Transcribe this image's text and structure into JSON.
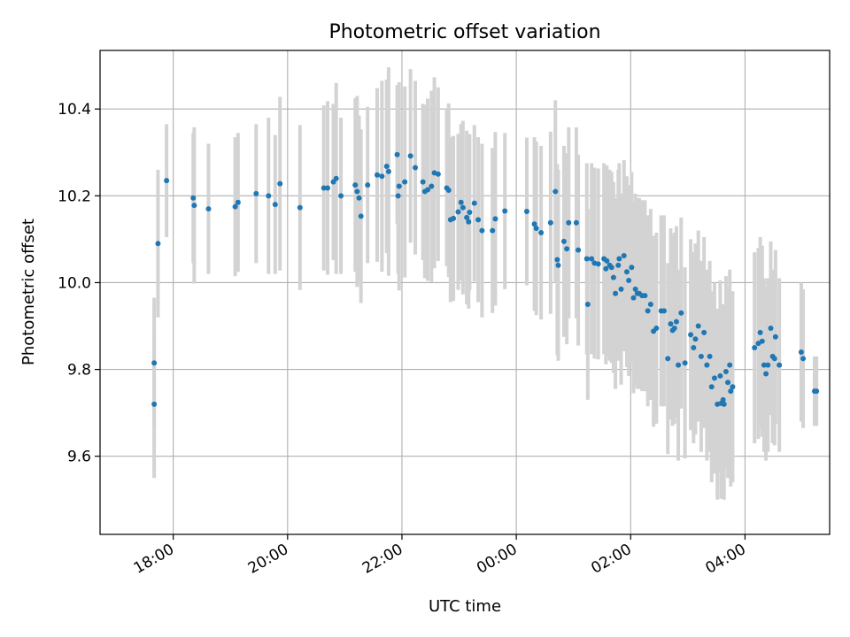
{
  "chart_data": {
    "type": "scatter",
    "title": "Photometric offset variation",
    "xlabel": "UTC time",
    "ylabel": "Photometric offset",
    "x_axis_kind": "time",
    "xlim_hours": [
      16.72,
      29.48
    ],
    "ylim": [
      9.42,
      10.535
    ],
    "x_ticks": [
      {
        "hour": 18,
        "label": "18:00"
      },
      {
        "hour": 20,
        "label": "20:00"
      },
      {
        "hour": 22,
        "label": "22:00"
      },
      {
        "hour": 24,
        "label": "00:00"
      },
      {
        "hour": 26,
        "label": "02:00"
      },
      {
        "hour": 28,
        "label": "04:00"
      }
    ],
    "y_ticks": [
      {
        "value": 9.6,
        "label": "9.6"
      },
      {
        "value": 9.8,
        "label": "9.8"
      },
      {
        "value": 10.0,
        "label": "10.0"
      },
      {
        "value": 10.2,
        "label": "10.2"
      },
      {
        "value": 10.4,
        "label": "10.4"
      }
    ],
    "grid": true,
    "colors": {
      "marker": "#1f77b4",
      "errorbar": "#d3d3d3",
      "grid": "#b0b0b0"
    },
    "series": [
      {
        "x": [
          "17:40",
          "17:40",
          "17:44",
          "17:53",
          "18:21",
          "18:22",
          "18:37",
          "19:05",
          "19:08",
          "19:27",
          "19:40",
          "19:47",
          "19:52",
          "20:13",
          "20:38",
          "20:42",
          "20:48",
          "20:51",
          "20:56",
          "21:11",
          "21:13",
          "21:15",
          "21:17",
          "21:24",
          "21:34",
          "21:39",
          "21:44",
          "21:46",
          "21:55",
          "21:56",
          "21:57",
          "22:03",
          "22:09",
          "22:14",
          "22:22",
          "22:24",
          "22:27",
          "22:31",
          "22:34",
          "22:38",
          "22:47",
          "22:49",
          "22:51",
          "22:54",
          "22:59",
          "23:02",
          "23:04",
          "23:08",
          "23:10",
          "23:11",
          "23:16",
          "23:20",
          "23:24",
          "23:35",
          "23:38",
          "23:48",
          "24:11",
          "24:19",
          "24:21",
          "24:26",
          "24:36",
          "24:41",
          "24:43",
          "24:44",
          "24:50",
          "24:53",
          "24:55",
          "25:03",
          "25:05",
          "25:14",
          "25:15",
          "25:19",
          "25:22",
          "25:26",
          "25:32",
          "25:34",
          "25:35",
          "25:38",
          "25:40",
          "25:42",
          "25:44",
          "25:47",
          "25:48",
          "25:50",
          "25:53",
          "25:56",
          "25:58",
          "26:01",
          "26:03",
          "26:05",
          "26:07",
          "26:09",
          "26:12",
          "26:15",
          "26:18",
          "26:21",
          "26:24",
          "26:27",
          "26:32",
          "26:35",
          "26:39",
          "26:42",
          "26:44",
          "26:46",
          "26:48",
          "26:50",
          "26:53",
          "26:57",
          "27:03",
          "27:06",
          "27:08",
          "27:11",
          "27:14",
          "27:17",
          "27:20",
          "27:23",
          "27:25",
          "27:28",
          "27:31",
          "27:34",
          "27:35",
          "27:37",
          "27:38",
          "27:40",
          "27:42",
          "27:44",
          "27:45",
          "27:47",
          "28:10",
          "28:14",
          "28:16",
          "28:18",
          "28:20",
          "28:22",
          "28:24",
          "28:27",
          "28:29",
          "28:31",
          "28:32",
          "28:36",
          "28:59",
          "29:01",
          "29:13",
          "29:15"
        ],
        "y": [
          9.72,
          9.815,
          10.09,
          10.235,
          10.195,
          10.178,
          10.17,
          10.175,
          10.185,
          10.205,
          10.2,
          10.18,
          10.228,
          10.173,
          10.218,
          10.218,
          10.232,
          10.24,
          10.2,
          10.225,
          10.21,
          10.195,
          10.153,
          10.225,
          10.248,
          10.245,
          10.268,
          10.256,
          10.295,
          10.2,
          10.222,
          10.232,
          10.292,
          10.265,
          10.232,
          10.21,
          10.214,
          10.222,
          10.253,
          10.25,
          10.218,
          10.213,
          10.145,
          10.148,
          10.163,
          10.185,
          10.173,
          10.15,
          10.14,
          10.162,
          10.183,
          10.145,
          10.12,
          10.12,
          10.147,
          10.165,
          10.164,
          10.135,
          10.125,
          10.115,
          10.138,
          10.21,
          10.053,
          10.04,
          10.095,
          10.078,
          10.138,
          10.138,
          10.075,
          10.055,
          9.95,
          10.055,
          10.045,
          10.043,
          10.055,
          10.032,
          10.05,
          10.04,
          10.035,
          10.012,
          9.975,
          10.04,
          10.055,
          9.985,
          10.062,
          10.025,
          10.005,
          10.035,
          9.965,
          9.985,
          9.975,
          9.975,
          9.97,
          9.97,
          9.935,
          9.95,
          9.888,
          9.895,
          9.935,
          9.935,
          9.825,
          9.905,
          9.89,
          9.895,
          9.91,
          9.81,
          9.93,
          9.815,
          9.88,
          9.85,
          9.87,
          9.9,
          9.83,
          9.885,
          9.81,
          9.83,
          9.76,
          9.78,
          9.72,
          9.785,
          9.722,
          9.73,
          9.72,
          9.795,
          9.77,
          9.81,
          9.75,
          9.76,
          9.85,
          9.86,
          9.885,
          9.865,
          9.81,
          9.79,
          9.81,
          9.895,
          9.83,
          9.825,
          9.875,
          9.81,
          9.84,
          9.825,
          9.75,
          9.75
        ],
        "y_err": [
          0.17,
          0.15,
          0.17,
          0.13,
          0.15,
          0.18,
          0.15,
          0.16,
          0.16,
          0.16,
          0.18,
          0.16,
          0.2,
          0.19,
          0.19,
          0.2,
          0.18,
          0.22,
          0.18,
          0.2,
          0.22,
          0.19,
          0.2,
          0.18,
          0.2,
          0.22,
          0.2,
          0.24,
          0.16,
          0.18,
          0.24,
          0.22,
          0.2,
          0.2,
          0.18,
          0.2,
          0.21,
          0.22,
          0.22,
          0.2,
          0.18,
          0.2,
          0.19,
          0.19,
          0.18,
          0.18,
          0.2,
          0.2,
          0.2,
          0.18,
          0.18,
          0.19,
          0.2,
          0.19,
          0.2,
          0.18,
          0.17,
          0.2,
          0.2,
          0.2,
          0.21,
          0.21,
          0.22,
          0.22,
          0.22,
          0.22,
          0.22,
          0.22,
          0.22,
          0.22,
          0.22,
          0.22,
          0.22,
          0.22,
          0.22,
          0.22,
          0.22,
          0.22,
          0.22,
          0.22,
          0.22,
          0.22,
          0.22,
          0.22,
          0.22,
          0.22,
          0.22,
          0.22,
          0.22,
          0.22,
          0.22,
          0.22,
          0.22,
          0.22,
          0.22,
          0.22,
          0.22,
          0.22,
          0.22,
          0.22,
          0.22,
          0.22,
          0.22,
          0.22,
          0.22,
          0.22,
          0.22,
          0.22,
          0.22,
          0.22,
          0.22,
          0.22,
          0.22,
          0.22,
          0.22,
          0.22,
          0.22,
          0.22,
          0.22,
          0.22,
          0.22,
          0.22,
          0.22,
          0.22,
          0.22,
          0.22,
          0.22,
          0.22,
          0.22,
          0.22,
          0.22,
          0.22,
          0.2,
          0.2,
          0.2,
          0.2,
          0.2,
          0.2,
          0.2,
          0.2,
          0.16,
          0.16,
          0.08,
          0.08
        ]
      }
    ]
  }
}
